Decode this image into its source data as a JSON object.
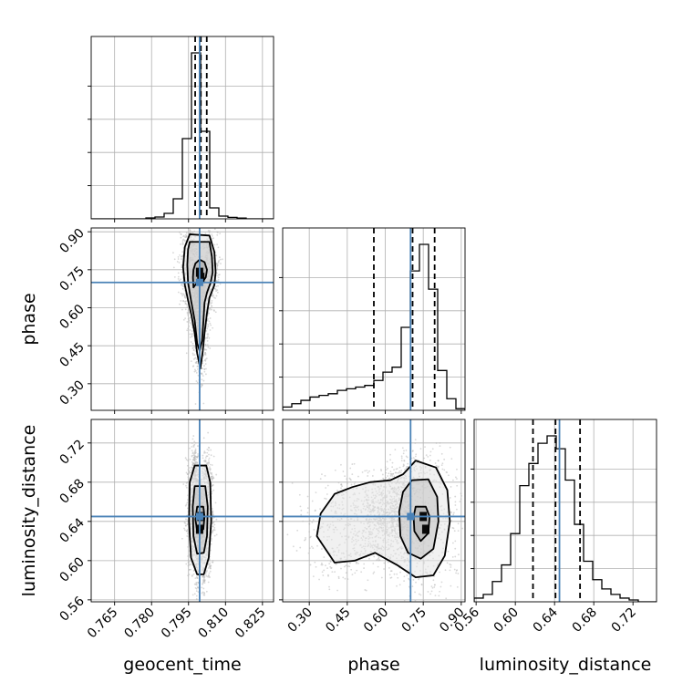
{
  "chart_data": {
    "type": "corner",
    "parameters": [
      {
        "name": "geocent_time",
        "range": [
          0.7555,
          0.8295
        ],
        "ticks": [
          "0.765",
          "0.780",
          "0.795",
          "0.810",
          "0.825"
        ],
        "tick_values": [
          0.765,
          0.78,
          0.795,
          0.81,
          0.825
        ],
        "injection": 0.7995,
        "quantiles": [
          0.7977,
          0.8,
          0.8024
        ],
        "hist_edges": [
          0.7555,
          0.7592,
          0.7629,
          0.7666,
          0.7703,
          0.774,
          0.7777,
          0.7814,
          0.7851,
          0.7888,
          0.7925,
          0.7962,
          0.7999,
          0.8036,
          0.8073,
          0.811,
          0.8147,
          0.8184,
          0.8221,
          0.8258,
          0.8295
        ],
        "hist_counts": [
          0,
          0,
          0,
          0,
          0,
          0,
          0.005,
          0.01,
          0.03,
          0.11,
          0.44,
          0.91,
          0.48,
          0.06,
          0.015,
          0.008,
          0.004,
          0,
          0,
          0
        ]
      },
      {
        "name": "phase",
        "range": [
          0.195,
          0.915
        ],
        "ticks": [
          "0.30",
          "0.45",
          "0.60",
          "0.75",
          "0.90"
        ],
        "tick_values": [
          0.3,
          0.45,
          0.6,
          0.75,
          0.9
        ],
        "injection": 0.7,
        "quantiles": [
          0.555,
          0.708,
          0.795
        ],
        "hist_edges": [
          0.195,
          0.231,
          0.267,
          0.303,
          0.339,
          0.375,
          0.411,
          0.447,
          0.483,
          0.519,
          0.555,
          0.591,
          0.627,
          0.663,
          0.699,
          0.735,
          0.771,
          0.807,
          0.843,
          0.879,
          0.915
        ],
        "hist_counts": [
          0.02,
          0.04,
          0.06,
          0.08,
          0.09,
          0.1,
          0.12,
          0.13,
          0.14,
          0.15,
          0.18,
          0.23,
          0.26,
          0.5,
          0.84,
          1.0,
          0.73,
          0.24,
          0.07,
          0.01
        ]
      },
      {
        "name": "luminosity_distance",
        "range": [
          0.558,
          0.744
        ],
        "ticks": [
          "0.56",
          "0.60",
          "0.64",
          "0.68",
          "0.72"
        ],
        "tick_values": [
          0.56,
          0.6,
          0.64,
          0.68,
          0.72
        ],
        "injection": 0.645,
        "quantiles": [
          0.618,
          0.641,
          0.666
        ],
        "hist_edges": [
          0.558,
          0.5673,
          0.5766,
          0.5859,
          0.5952,
          0.6045,
          0.6138,
          0.6231,
          0.6324,
          0.6417,
          0.651,
          0.6603,
          0.6696,
          0.6789,
          0.6882,
          0.6975,
          0.7068,
          0.7161,
          0.7254,
          0.7347,
          0.744
        ],
        "hist_counts": [
          0.02,
          0.04,
          0.11,
          0.2,
          0.37,
          0.63,
          0.75,
          0.86,
          0.9,
          0.83,
          0.66,
          0.42,
          0.22,
          0.12,
          0.07,
          0.04,
          0.02,
          0.01,
          0,
          0
        ]
      }
    ],
    "pairs": [
      {
        "x": "geocent_time",
        "y": "phase",
        "contours": [
          {
            "level": "inner",
            "points": [
              [
                0.797,
                0.68
              ],
              [
                0.7985,
                0.7
              ],
              [
                0.8005,
                0.7
              ],
              [
                0.802,
                0.72
              ],
              [
                0.8025,
                0.75
              ],
              [
                0.8015,
                0.78
              ],
              [
                0.7995,
                0.79
              ],
              [
                0.7978,
                0.775
              ],
              [
                0.797,
                0.75
              ],
              [
                0.7968,
                0.72
              ],
              [
                0.797,
                0.68
              ]
            ]
          },
          {
            "level": "middle",
            "points": [
              [
                0.7955,
                0.86
              ],
              [
                0.8035,
                0.86
              ],
              [
                0.8045,
                0.8
              ],
              [
                0.8048,
                0.74
              ],
              [
                0.804,
                0.7
              ],
              [
                0.8025,
                0.66
              ],
              [
                0.8015,
                0.62
              ],
              [
                0.801,
                0.54
              ],
              [
                0.8005,
                0.47
              ],
              [
                0.7995,
                0.43
              ],
              [
                0.7985,
                0.46
              ],
              [
                0.7975,
                0.55
              ],
              [
                0.796,
                0.63
              ],
              [
                0.7948,
                0.7
              ],
              [
                0.7945,
                0.77
              ],
              [
                0.7948,
                0.83
              ],
              [
                0.7955,
                0.86
              ]
            ]
          },
          {
            "level": "outer",
            "points": [
              [
                0.7955,
                0.89
              ],
              [
                0.8035,
                0.885
              ],
              [
                0.8055,
                0.82
              ],
              [
                0.806,
                0.74
              ],
              [
                0.8055,
                0.69
              ],
              [
                0.8035,
                0.64
              ],
              [
                0.8025,
                0.58
              ],
              [
                0.8015,
                0.5
              ],
              [
                0.8008,
                0.43
              ],
              [
                0.7998,
                0.36
              ],
              [
                0.7985,
                0.42
              ],
              [
                0.7975,
                0.5
              ],
              [
                0.7962,
                0.57
              ],
              [
                0.7948,
                0.63
              ],
              [
                0.7935,
                0.69
              ],
              [
                0.7928,
                0.76
              ],
              [
                0.7935,
                0.84
              ],
              [
                0.7955,
                0.89
              ]
            ]
          }
        ],
        "hot_spots": [
          [
            0.7995,
            0.74
          ],
          [
            0.8,
            0.72
          ]
        ]
      },
      {
        "x": "geocent_time",
        "y": "luminosity_distance",
        "contours": [
          {
            "level": "inner",
            "points": [
              [
                0.7985,
                0.655
              ],
              [
                0.801,
                0.655
              ],
              [
                0.8015,
                0.645
              ],
              [
                0.801,
                0.632
              ],
              [
                0.7985,
                0.63
              ],
              [
                0.7978,
                0.642
              ],
              [
                0.7985,
                0.655
              ]
            ]
          },
          {
            "level": "middle",
            "points": [
              [
                0.7975,
                0.676
              ],
              [
                0.8018,
                0.676
              ],
              [
                0.8028,
                0.655
              ],
              [
                0.8025,
                0.625
              ],
              [
                0.8012,
                0.608
              ],
              [
                0.7985,
                0.607
              ],
              [
                0.797,
                0.625
              ],
              [
                0.7967,
                0.655
              ],
              [
                0.7975,
                0.676
              ]
            ]
          },
          {
            "level": "outer",
            "points": [
              [
                0.7975,
                0.697
              ],
              [
                0.8022,
                0.697
              ],
              [
                0.8038,
                0.68
              ],
              [
                0.8042,
                0.64
              ],
              [
                0.8032,
                0.603
              ],
              [
                0.8012,
                0.586
              ],
              [
                0.7985,
                0.586
              ],
              [
                0.796,
                0.603
              ],
              [
                0.7952,
                0.64
              ],
              [
                0.7955,
                0.68
              ],
              [
                0.7975,
                0.697
              ]
            ]
          }
        ],
        "hot_spots": [
          [
            0.8,
            0.645
          ],
          [
            0.7995,
            0.632
          ]
        ]
      },
      {
        "x": "phase",
        "y": "luminosity_distance",
        "contours": [
          {
            "level": "inner",
            "points": [
              [
                0.72,
                0.655
              ],
              [
                0.76,
                0.655
              ],
              [
                0.775,
                0.645
              ],
              [
                0.77,
                0.628
              ],
              [
                0.74,
                0.62
              ],
              [
                0.715,
                0.63
              ],
              [
                0.712,
                0.645
              ],
              [
                0.72,
                0.655
              ]
            ]
          },
          {
            "level": "middle",
            "points": [
              [
                0.705,
                0.682
              ],
              [
                0.77,
                0.683
              ],
              [
                0.805,
                0.665
              ],
              [
                0.81,
                0.64
              ],
              [
                0.79,
                0.612
              ],
              [
                0.74,
                0.602
              ],
              [
                0.69,
                0.608
              ],
              [
                0.66,
                0.625
              ],
              [
                0.655,
                0.65
              ],
              [
                0.67,
                0.67
              ],
              [
                0.705,
                0.682
              ]
            ]
          },
          {
            "level": "outer",
            "points": [
              [
                0.67,
                0.688
              ],
              [
                0.72,
                0.702
              ],
              [
                0.8,
                0.695
              ],
              [
                0.845,
                0.672
              ],
              [
                0.855,
                0.64
              ],
              [
                0.835,
                0.605
              ],
              [
                0.79,
                0.585
              ],
              [
                0.72,
                0.583
              ],
              [
                0.65,
                0.595
              ],
              [
                0.56,
                0.608
              ],
              [
                0.48,
                0.6
              ],
              [
                0.4,
                0.598
              ],
              [
                0.33,
                0.625
              ],
              [
                0.345,
                0.648
              ],
              [
                0.4,
                0.668
              ],
              [
                0.47,
                0.675
              ],
              [
                0.54,
                0.68
              ],
              [
                0.62,
                0.682
              ],
              [
                0.67,
                0.688
              ]
            ]
          }
        ],
        "hot_spots": [
          [
            0.75,
            0.645
          ],
          [
            0.76,
            0.632
          ]
        ]
      }
    ],
    "colors": {
      "injection": "#4a82b7",
      "contour": "#000000",
      "scatter": "#b8b8b8",
      "grid": "#b0b0b0",
      "hist": "#000000"
    },
    "grid": true
  }
}
